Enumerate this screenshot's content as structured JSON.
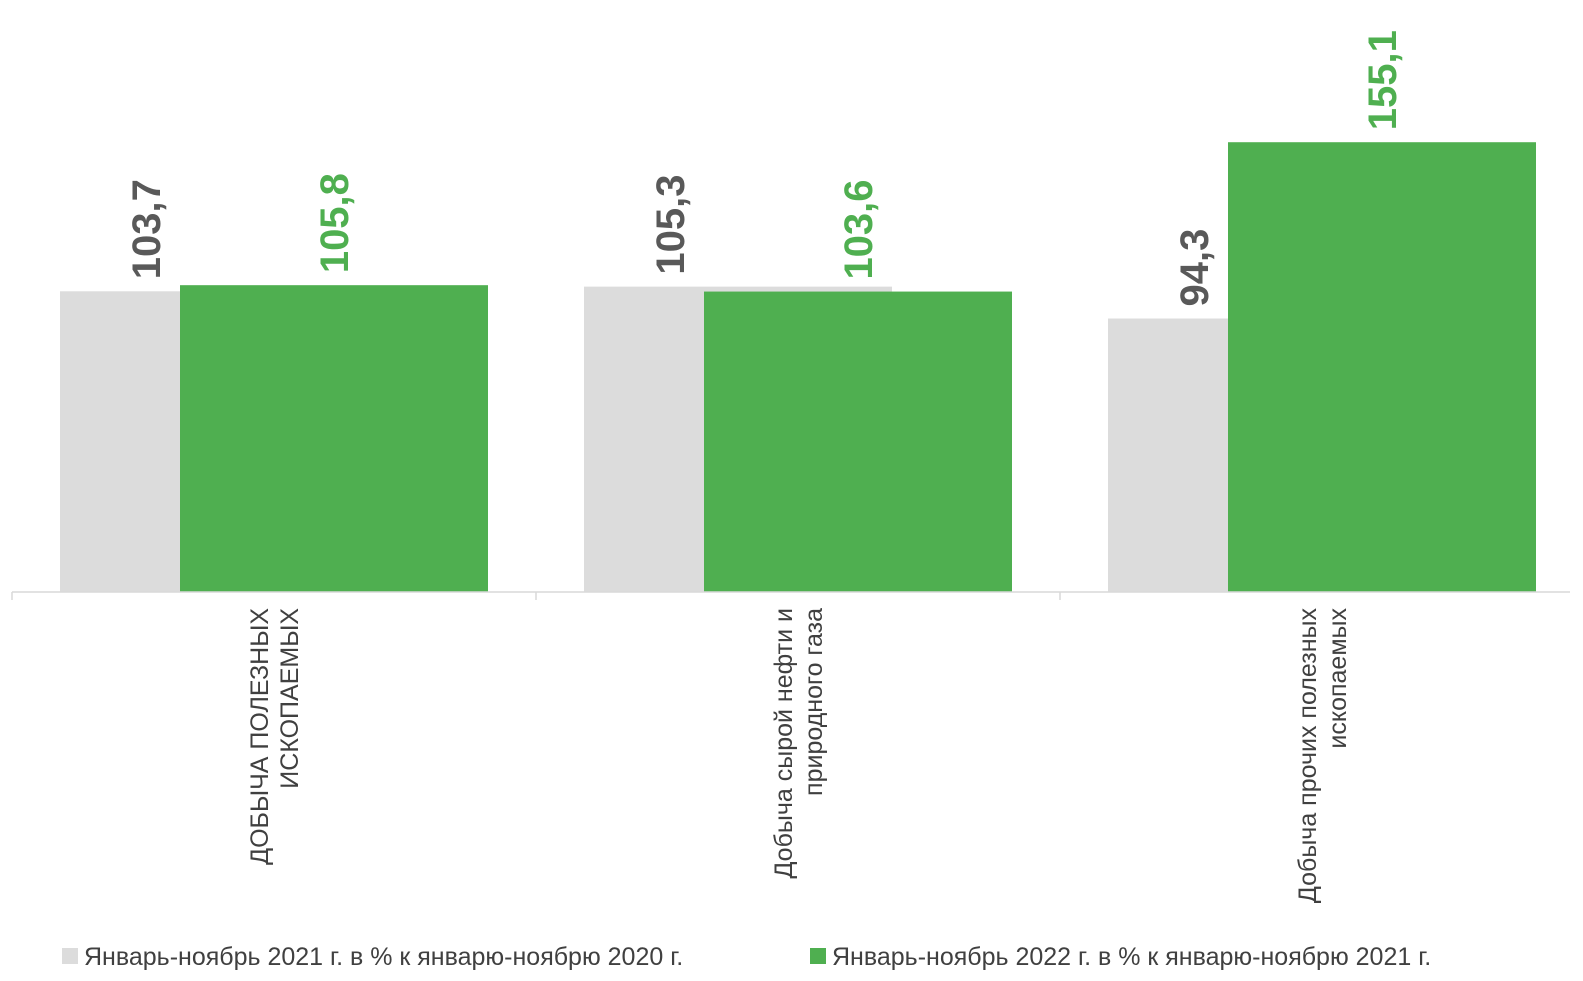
{
  "chart_data": {
    "type": "bar",
    "title": "",
    "xlabel": "",
    "ylabel": "",
    "ylim": [
      0,
      160
    ],
    "grid": false,
    "legend_position": "bottom",
    "categories": [
      [
        "ДОБЫЧА ПОЛЕЗНЫХ",
        "ИСКОПАЕМЫХ"
      ],
      [
        "Добыча сырой нефти и",
        "природного газа"
      ],
      [
        "Добыча прочих полезных",
        "ископаемых"
      ]
    ],
    "series": [
      {
        "name": "Январь-ноябрь 2021 г. в % к январю-ноябрю 2020 г.",
        "color": "#dcdcdc",
        "label_color": "#595959",
        "values": [
          103.7,
          105.3,
          94.3
        ],
        "value_labels": [
          "103,7",
          "105,3",
          "94,3"
        ]
      },
      {
        "name": "Январь-ноябрь 2022 г. в % к январю-ноябрю 2021 г.",
        "color": "#4faf50",
        "label_color": "#4faf50",
        "values": [
          105.8,
          103.6,
          155.1
        ],
        "value_labels": [
          "105,8",
          "103,6",
          "155,1"
        ]
      }
    ]
  }
}
